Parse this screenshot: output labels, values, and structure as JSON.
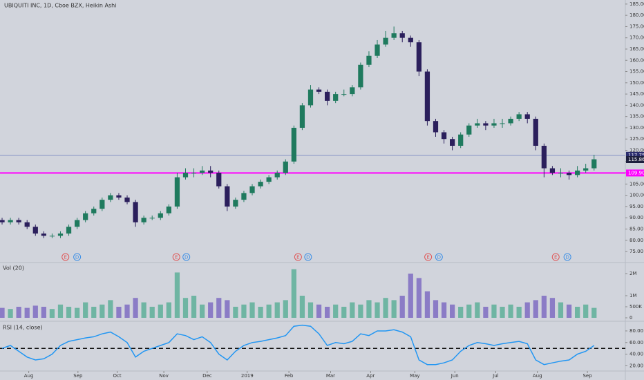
{
  "chart_data": {
    "type": "candlestick",
    "title": "UBIQUITI INC, 1D, Cboe BZX, Heikin Ashi",
    "up_color": "#1f7a5e",
    "down_color": "#2b1f5c",
    "xlim": [
      -0.25,
      74.75
    ],
    "xticks": [
      {
        "value": 3.2,
        "label": "Aug"
      },
      {
        "value": 9.1,
        "label": "Sep"
      },
      {
        "value": 13.8,
        "label": "Oct"
      },
      {
        "value": 19.4,
        "label": "Nov"
      },
      {
        "value": 24.6,
        "label": "Dec"
      },
      {
        "value": 29.4,
        "label": "2019"
      },
      {
        "value": 34.4,
        "label": "Feb"
      },
      {
        "value": 39.4,
        "label": "Mar"
      },
      {
        "value": 44.2,
        "label": "Apr"
      },
      {
        "value": 49.5,
        "label": "May"
      },
      {
        "value": 54.3,
        "label": "Jun"
      },
      {
        "value": 59.2,
        "label": "Jul"
      },
      {
        "value": 64.2,
        "label": "Aug"
      },
      {
        "value": 70.2,
        "label": "Sep"
      }
    ],
    "ylim": [
      70.1,
      186.8
    ],
    "yticks": [
      {
        "value": 75,
        "label": "75.00"
      },
      {
        "value": 80,
        "label": "80.00"
      },
      {
        "value": 85,
        "label": "85.00"
      },
      {
        "value": 90,
        "label": "90.00"
      },
      {
        "value": 95,
        "label": "95.00"
      },
      {
        "value": 100,
        "label": "100.00"
      },
      {
        "value": 105,
        "label": "105.00"
      },
      {
        "value": 110,
        "label": "110.00"
      },
      {
        "value": 115,
        "label": "115.00"
      },
      {
        "value": 120,
        "label": "120.00"
      },
      {
        "value": 125,
        "label": "125.00"
      },
      {
        "value": 130,
        "label": "130.00"
      },
      {
        "value": 135,
        "label": "135.00"
      },
      {
        "value": 140,
        "label": "140.00"
      },
      {
        "value": 145,
        "label": "145.00"
      },
      {
        "value": 150,
        "label": "150.00"
      },
      {
        "value": 155,
        "label": "155.00"
      },
      {
        "value": 160,
        "label": "160.00"
      },
      {
        "value": 165,
        "label": "165.00"
      },
      {
        "value": 170,
        "label": "170.00"
      },
      {
        "value": 175,
        "label": "175.00"
      },
      {
        "value": 180,
        "label": "180.00"
      },
      {
        "value": 185,
        "label": "185.00"
      }
    ],
    "open": [
      89,
      88,
      89,
      88,
      86,
      83,
      82,
      82,
      83,
      86,
      89,
      92,
      94,
      98,
      100,
      99,
      97,
      88,
      90,
      90,
      92,
      95,
      108,
      110,
      110,
      111,
      110,
      104,
      95,
      98,
      101,
      104,
      106,
      108,
      110,
      115,
      130,
      140,
      147,
      146,
      142,
      145,
      145,
      148,
      158,
      162,
      167,
      170,
      172,
      170,
      168,
      155,
      133,
      128,
      125,
      122,
      127,
      131,
      132,
      131,
      132,
      132,
      134,
      136,
      134,
      122,
      112,
      110,
      110,
      109,
      111,
      112
    ],
    "high": [
      90,
      90,
      90,
      89,
      87,
      84,
      83,
      84,
      87,
      90,
      93,
      95,
      99,
      101,
      101,
      100,
      98,
      91,
      91,
      93,
      96,
      110,
      112,
      112,
      113,
      113,
      111,
      105,
      99,
      102,
      105,
      107,
      109,
      111,
      116,
      131,
      141,
      149,
      148,
      147,
      146,
      147,
      149,
      159,
      164,
      169,
      173,
      175,
      173,
      171,
      169,
      156,
      134,
      129,
      126,
      128,
      132,
      134,
      133,
      134,
      134,
      135,
      137,
      137,
      135,
      123,
      113,
      112,
      111,
      113,
      114,
      118
    ],
    "low": [
      87,
      87,
      87,
      85,
      82,
      81,
      81,
      81,
      82,
      85,
      88,
      91,
      93,
      97,
      98,
      96,
      86,
      87,
      89,
      89,
      91,
      94,
      107,
      108,
      109,
      108,
      103,
      93,
      94,
      97,
      100,
      103,
      105,
      107,
      109,
      114,
      129,
      139,
      145,
      140,
      141,
      144,
      144,
      147,
      157,
      161,
      166,
      169,
      168,
      166,
      153,
      131,
      126,
      123,
      120,
      121,
      126,
      130,
      129,
      130,
      130,
      131,
      133,
      132,
      120,
      108,
      109,
      108,
      107,
      108,
      110,
      111
    ],
    "close": [
      88,
      89,
      88,
      86,
      83,
      82,
      82,
      83,
      86,
      89,
      92,
      94,
      98,
      100,
      99,
      97,
      88,
      90,
      90,
      92,
      95,
      108,
      110,
      110,
      111,
      110,
      104,
      95,
      98,
      101,
      104,
      106,
      108,
      110,
      115,
      130,
      140,
      147,
      146,
      142,
      145,
      145,
      148,
      158,
      162,
      167,
      170,
      172,
      170,
      168,
      155,
      133,
      128,
      125,
      122,
      127,
      131,
      132,
      131,
      132,
      132,
      134,
      136,
      134,
      122,
      112,
      110,
      110,
      109,
      111,
      112,
      116
    ],
    "hlines": [
      {
        "value": 117.75,
        "color": "#6b7bbd"
      },
      {
        "value": 109.9,
        "color": "#ff00ff"
      }
    ],
    "price_labels": [
      {
        "value": 117.75,
        "label": "117.75",
        "color": "#2b2d6e"
      },
      {
        "value": 115.86,
        "label": "115.86",
        "color": "#1d1f3d"
      },
      {
        "value": 109.9,
        "label": "109.90",
        "color": "#ff00ff"
      }
    ],
    "events": [
      {
        "x": 7.6,
        "label": "E",
        "color": "#e05555"
      },
      {
        "x": 9.0,
        "label": "D",
        "color": "#3a8ee6"
      },
      {
        "x": 20.9,
        "label": "E",
        "color": "#e05555"
      },
      {
        "x": 22.1,
        "label": "D",
        "color": "#3a8ee6"
      },
      {
        "x": 35.5,
        "label": "E",
        "color": "#e05555"
      },
      {
        "x": 36.7,
        "label": "D",
        "color": "#3a8ee6"
      },
      {
        "x": 51.1,
        "label": "E",
        "color": "#e05555"
      },
      {
        "x": 52.4,
        "label": "D",
        "color": "#3a8ee6"
      },
      {
        "x": 66.4,
        "label": "E",
        "color": "#e05555"
      },
      {
        "x": 67.8,
        "label": "D",
        "color": "#3a8ee6"
      }
    ],
    "volume": {
      "label": "Vol (20)",
      "up_color": "#6fb5a3",
      "down_color": "#8b7cc6",
      "ylim": [
        0,
        2500000
      ],
      "yticks": [
        0,
        {
          "value": 500000,
          "label": "500K"
        },
        {
          "value": 1000000,
          "label": "1M"
        },
        {
          "value": 2000000,
          "label": "2M"
        }
      ],
      "values": [
        450000,
        400000,
        500000,
        450000,
        550000,
        500000,
        400000,
        600000,
        500000,
        450000,
        700000,
        500000,
        600000,
        800000,
        500000,
        600000,
        900000,
        700000,
        500000,
        600000,
        700000,
        2050000,
        900000,
        1000000,
        600000,
        700000,
        900000,
        800000,
        500000,
        600000,
        700000,
        500000,
        600000,
        700000,
        800000,
        2200000,
        1000000,
        700000,
        600000,
        500000,
        600000,
        500000,
        700000,
        600000,
        800000,
        700000,
        900000,
        800000,
        1000000,
        2000000,
        1800000,
        1200000,
        800000,
        700000,
        600000,
        500000,
        600000,
        700000,
        500000,
        600000,
        500000,
        600000,
        500000,
        700000,
        800000,
        1000000,
        900000,
        700000,
        600000,
        500000,
        600000,
        450000
      ]
    },
    "rsi": {
      "label": "RSI (14, close)",
      "color": "#2196f3",
      "level": 50,
      "ylim": [
        11,
        96.6
      ],
      "yticks": [
        {
          "value": 20,
          "label": "20.00"
        },
        {
          "value": 40,
          "label": "40.00"
        },
        {
          "value": 60,
          "label": "60.00"
        },
        {
          "value": 80,
          "label": "80.00"
        }
      ],
      "values": [
        50,
        55,
        45,
        35,
        30,
        32,
        40,
        55,
        62,
        65,
        68,
        70,
        75,
        78,
        70,
        60,
        35,
        45,
        50,
        55,
        60,
        75,
        72,
        65,
        70,
        60,
        40,
        30,
        45,
        55,
        60,
        62,
        65,
        68,
        72,
        88,
        90,
        88,
        75,
        55,
        60,
        58,
        62,
        75,
        72,
        80,
        80,
        82,
        78,
        70,
        30,
        22,
        22,
        25,
        30,
        45,
        55,
        60,
        58,
        55,
        58,
        60,
        62,
        58,
        30,
        22,
        25,
        28,
        30,
        40,
        45,
        55
      ]
    }
  }
}
